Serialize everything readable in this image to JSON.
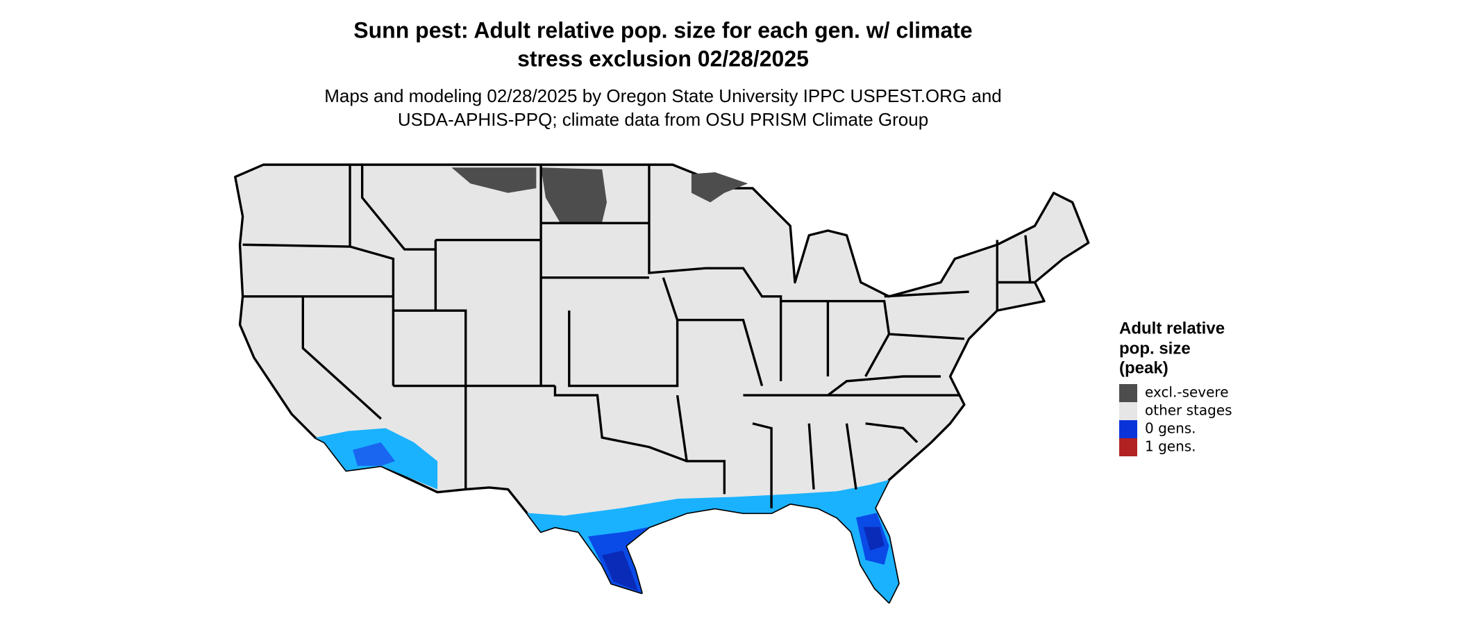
{
  "title": [
    "Sunn pest: Adult relative pop. size for each gen. w/ climate",
    "stress exclusion 02/28/2025"
  ],
  "subtitle": [
    "Maps and modeling 02/28/2025 by Oregon State University IPPC USPEST.ORG and",
    "USDA-APHIS-PPQ; climate data from OSU PRISM Climate Group"
  ],
  "legend": {
    "title": [
      "Adult relative",
      "pop. size",
      "(peak)"
    ],
    "items": [
      {
        "label": "excl.-severe",
        "color": "#4d4d4d"
      },
      {
        "label": "other stages",
        "color": "#e6e6e6"
      },
      {
        "label": "0 gens.",
        "color": "#0a33d9"
      },
      {
        "label": "1 gens.",
        "color": "#b22222"
      }
    ]
  }
}
